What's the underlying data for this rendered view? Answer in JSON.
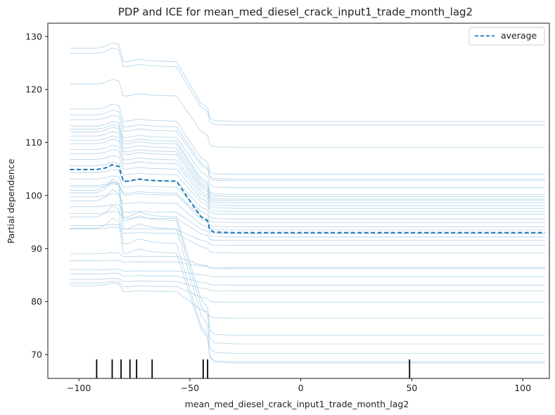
{
  "chart_data": {
    "type": "line",
    "title": "PDP and ICE for mean_med_diesel_crack_input1_trade_month_lag2",
    "xlabel": "mean_med_diesel_crack_input1_trade_month_lag2",
    "ylabel": "Partial dependence",
    "xlim": [
      -114,
      112
    ],
    "ylim": [
      65.5,
      132.5
    ],
    "xticks": [
      -100,
      -50,
      0,
      50,
      100
    ],
    "xtick_labels": [
      "−100",
      "−50",
      "0",
      "50",
      "100"
    ],
    "yticks": [
      70,
      80,
      90,
      100,
      110,
      120,
      130
    ],
    "ytick_labels": [
      "70",
      "80",
      "90",
      "100",
      "110",
      "120",
      "130"
    ],
    "grid": false,
    "legend": {
      "position": "top-right",
      "entries": [
        "average"
      ]
    },
    "colors": {
      "average": "#1f77b4",
      "ice": "#a6cde4",
      "rug": "#000000"
    },
    "x": [
      -104,
      -96,
      -92,
      -88,
      -85,
      -82,
      -80,
      -78,
      -73,
      -69,
      -65,
      -56,
      -50,
      -45,
      -43,
      -42,
      -41,
      -39,
      -30,
      0,
      50,
      110
    ],
    "average": {
      "name": "average",
      "values": [
        104.9,
        104.9,
        104.9,
        105.2,
        105.8,
        105.5,
        102.7,
        102.7,
        103.1,
        102.9,
        102.8,
        102.7,
        99.0,
        96.0,
        95.5,
        95.2,
        93.5,
        93.1,
        93.0,
        93.0,
        93.0,
        93.0
      ]
    },
    "ice": [
      {
        "start": 127.8,
        "end": 114.0
      },
      {
        "start": 126.8,
        "end": 113.3
      },
      {
        "start": 121.0,
        "end": 109.1
      },
      {
        "start": 116.3,
        "end": 104.0
      },
      {
        "start": 115.2,
        "end": 103.1
      },
      {
        "start": 114.3,
        "end": 102.8
      },
      {
        "start": 113.1,
        "end": 101.5
      },
      {
        "start": 112.5,
        "end": 100.2
      },
      {
        "start": 112.0,
        "end": 99.8
      },
      {
        "start": 111.2,
        "end": 99.3
      },
      {
        "start": 110.4,
        "end": 99.0
      },
      {
        "start": 109.8,
        "end": 98.6
      },
      {
        "start": 108.7,
        "end": 98.1
      },
      {
        "start": 107.9,
        "end": 97.6
      },
      {
        "start": 106.8,
        "end": 97.0
      },
      {
        "start": 105.6,
        "end": 96.5
      },
      {
        "start": 104.3,
        "end": 95.6
      },
      {
        "start": 103.1,
        "end": 94.9
      },
      {
        "start": 101.9,
        "end": 94.1
      },
      {
        "start": 101.6,
        "end": 93.5
      },
      {
        "start": 99.8,
        "end": 92.8
      },
      {
        "start": 97.9,
        "end": 92.2
      },
      {
        "start": 96.6,
        "end": 91.5
      },
      {
        "start": 94.3,
        "end": 90.6
      },
      {
        "start": 93.7,
        "end": 89.2
      },
      {
        "start": 89.0,
        "end": 86.2
      },
      {
        "start": 87.7,
        "end": 86.4
      },
      {
        "start": 86.0,
        "end": 84.7
      },
      {
        "start": 85.2,
        "end": 83.1
      },
      {
        "start": 84.2,
        "end": 82.0
      },
      {
        "start": 83.5,
        "end": 79.9
      },
      {
        "start": 83.0,
        "end": 76.9
      },
      {
        "start": 101.0,
        "end": 73.6
      },
      {
        "start": 100.5,
        "end": 72.0
      },
      {
        "start": 99.0,
        "end": 70.2
      },
      {
        "start": 96.0,
        "end": 68.6
      },
      {
        "start": 93.8,
        "end": 68.4
      }
    ],
    "rug_x": [
      -92,
      -85,
      -81,
      -77,
      -74,
      -67,
      -44,
      -42,
      49
    ]
  }
}
